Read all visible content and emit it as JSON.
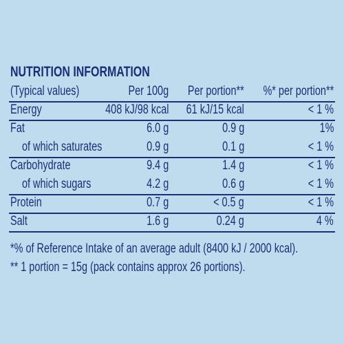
{
  "title": "NUTRITION INFORMATION",
  "table": {
    "header": [
      "(Typical values)",
      "Per 100g",
      "Per portion**",
      "%* per portion**"
    ],
    "rows": [
      [
        "Energy",
        "408 kJ/98 kcal",
        "61 kJ/15 kcal",
        "< 1 %"
      ],
      [
        "Fat",
        "6.0 g",
        "0.9 g",
        "1%"
      ],
      [
        "of which saturates",
        "0.9 g",
        "0.1 g",
        "< 1 %"
      ],
      [
        "Carbohydrate",
        "9.4 g",
        "1.4 g",
        "< 1 %"
      ],
      [
        "of which sugars",
        "4.2 g",
        "0.6 g",
        "< 1 %"
      ],
      [
        "Protein",
        "0.7 g",
        "< 0.5 g",
        "< 1 %"
      ],
      [
        "Salt",
        "1.6 g",
        "0.24 g",
        "4 %"
      ]
    ]
  },
  "footnotes": [
    "*% of Reference Intake of an average adult (8400 kJ / 2000 kcal).",
    "** 1 portion = 15g (pack contains approx 26 portions)."
  ]
}
